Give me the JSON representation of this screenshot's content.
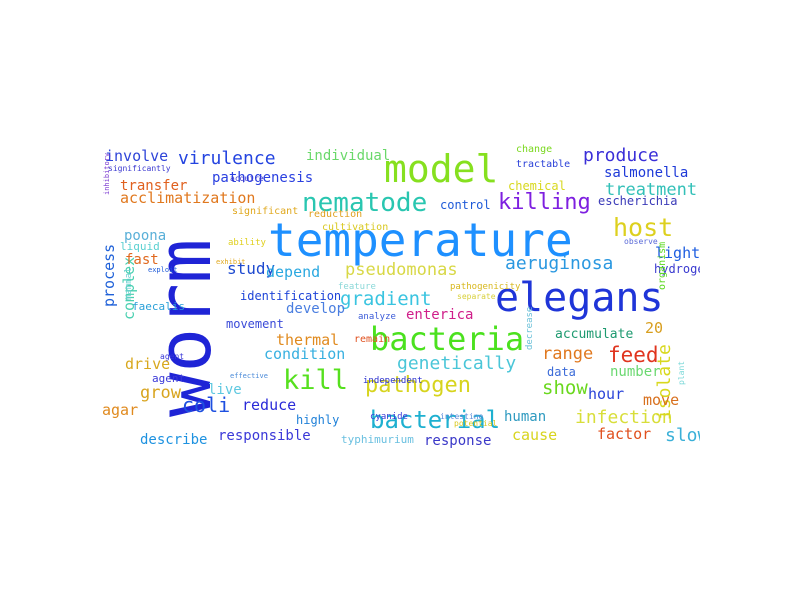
{
  "words": [
    {
      "text": "worm",
      "color": "#1f24d6"
    },
    {
      "text": "temperature",
      "color": "#1e90ff"
    },
    {
      "text": "elegans",
      "color": "#1f35d8"
    },
    {
      "text": "model",
      "color": "#86e01f"
    },
    {
      "text": "bacteria",
      "color": "#4be11e"
    },
    {
      "text": "bacterial",
      "color": "#1eb0d0"
    },
    {
      "text": "nematode",
      "color": "#29c6b0"
    },
    {
      "text": "host",
      "color": "#ddd01e"
    },
    {
      "text": "kill",
      "color": "#56e01e"
    },
    {
      "text": "pathogen",
      "color": "#d7d41e"
    },
    {
      "text": "killing",
      "color": "#7e1fe0"
    },
    {
      "text": "virulence",
      "color": "#2444e0"
    },
    {
      "text": "produce",
      "color": "#3a2fd8"
    },
    {
      "text": "treatment",
      "color": "#33c0b8"
    },
    {
      "text": "feed",
      "color": "#e0341e"
    },
    {
      "text": "gradient",
      "color": "#3ac4e0"
    },
    {
      "text": "show",
      "color": "#6ad81e"
    },
    {
      "text": "infection",
      "color": "#d8de3a"
    },
    {
      "text": "genetically",
      "color": "#4ac6d8"
    },
    {
      "text": "coli",
      "color": "#1e50e0"
    },
    {
      "text": "aeruginosa",
      "color": "#2a98e0"
    },
    {
      "text": "pseudomonas",
      "color": "#d8d846"
    },
    {
      "text": "pathogenesis",
      "color": "#2a40e0"
    },
    {
      "text": "acclimatization",
      "color": "#e0781e"
    },
    {
      "text": "individual",
      "color": "#6ad86a"
    },
    {
      "text": "involve",
      "color": "#2e44d8"
    },
    {
      "text": "transfer",
      "color": "#e0601e"
    },
    {
      "text": "salmonella",
      "color": "#1e3ad8"
    },
    {
      "text": "thermal",
      "color": "#e08a1e"
    },
    {
      "text": "complex",
      "color": "#4ad0b0"
    },
    {
      "text": "range",
      "color": "#e0781e"
    },
    {
      "text": "grow",
      "color": "#d8a41e"
    },
    {
      "text": "study",
      "color": "#1e4ad0"
    },
    {
      "text": "depend",
      "color": "#2aa8e0"
    },
    {
      "text": "light",
      "color": "#1e5ee0"
    },
    {
      "text": "enterica",
      "color": "#d01e8a"
    },
    {
      "text": "develop",
      "color": "#4a7ee0"
    },
    {
      "text": "condition",
      "color": "#38b0e0"
    },
    {
      "text": "responsible",
      "color": "#3a38d8"
    },
    {
      "text": "describe",
      "color": "#1e92e0"
    },
    {
      "text": "human",
      "color": "#2e9ac0"
    },
    {
      "text": "cause",
      "color": "#d8d41e"
    },
    {
      "text": "factor",
      "color": "#e0501e"
    },
    {
      "text": "slow",
      "color": "#3ab0d8"
    },
    {
      "text": "isolate",
      "color": "#d8d81e"
    },
    {
      "text": "response",
      "color": "#3a38c8"
    },
    {
      "text": "reduce",
      "color": "#2a2ad8"
    },
    {
      "text": "drive",
      "color": "#d8a81e"
    },
    {
      "text": "live",
      "color": "#5ec8e0"
    },
    {
      "text": "poona",
      "color": "#5ab0d8"
    },
    {
      "text": "process",
      "color": "#1e60d8"
    },
    {
      "text": "agar",
      "color": "#e08a1e"
    },
    {
      "text": "fast",
      "color": "#e0681e"
    },
    {
      "text": "hour",
      "color": "#2a44d8"
    },
    {
      "text": "move",
      "color": "#d8701e"
    },
    {
      "text": "number",
      "color": "#6ad870"
    },
    {
      "text": "accumulate",
      "color": "#1e9a70"
    },
    {
      "text": "20",
      "color": "#d89e1e"
    },
    {
      "text": "escherichia",
      "color": "#3a3ab8"
    },
    {
      "text": "hydrogen",
      "color": "#3a3ad0"
    },
    {
      "text": "chemical",
      "color": "#d8d81e"
    },
    {
      "text": "control",
      "color": "#1e5ad8"
    },
    {
      "text": "movement",
      "color": "#3a4ad8"
    },
    {
      "text": "identification",
      "color": "#1e44d8"
    },
    {
      "text": "highly",
      "color": "#1e80d8"
    },
    {
      "text": "agent",
      "color": "#3a38d8"
    },
    {
      "text": "data",
      "color": "#3a6ad8"
    },
    {
      "text": "typhimurium",
      "color": "#6ac0e0"
    },
    {
      "text": "faecalis",
      "color": "#2aa0d8"
    },
    {
      "text": "liquid",
      "color": "#5ad0d0"
    },
    {
      "text": "cultivation",
      "color": "#d8c81e"
    },
    {
      "text": "reduction",
      "color": "#e0a01e"
    },
    {
      "text": "significant",
      "color": "#e0a81e"
    },
    {
      "text": "tractable",
      "color": "#2a40d8"
    },
    {
      "text": "change",
      "color": "#7ad81e"
    },
    {
      "text": "feature",
      "color": "#8ad8d8"
    },
    {
      "text": "analyze",
      "color": "#3a5ad8"
    },
    {
      "text": "remain",
      "color": "#e0501e"
    },
    {
      "text": "organism",
      "color": "#5ad81e"
    },
    {
      "text": "ability",
      "color": "#e0d01e"
    },
    {
      "text": "pathogenicity",
      "color": "#d8b81e"
    },
    {
      "text": "independent",
      "color": "#2a30d0"
    },
    {
      "text": "cyanide",
      "color": "#3a3ad8"
    },
    {
      "text": "intestine",
      "color": "#5a8ad8"
    },
    {
      "text": "potential",
      "color": "#d8c81e"
    },
    {
      "text": "decrease",
      "color": "#6ac0d8"
    },
    {
      "text": "separate",
      "color": "#d8d03a"
    },
    {
      "text": "mammal",
      "color": "#6ad0d0"
    },
    {
      "text": "observe",
      "color": "#5a6ad8"
    },
    {
      "text": "acquire",
      "color": "#3a38d0"
    },
    {
      "text": "significantly",
      "color": "#3a38d0"
    },
    {
      "text": "inhibitory",
      "color": "#7a38d0"
    },
    {
      "text": "exhibit",
      "color": "#e0a81e"
    },
    {
      "text": "exploit",
      "color": "#1e5ad8"
    },
    {
      "text": "plant",
      "color": "#7ad8d8"
    },
    {
      "text": "effective",
      "color": "#4a8ad8"
    },
    {
      "text": "agent",
      "color": "#3a38d8"
    }
  ]
}
